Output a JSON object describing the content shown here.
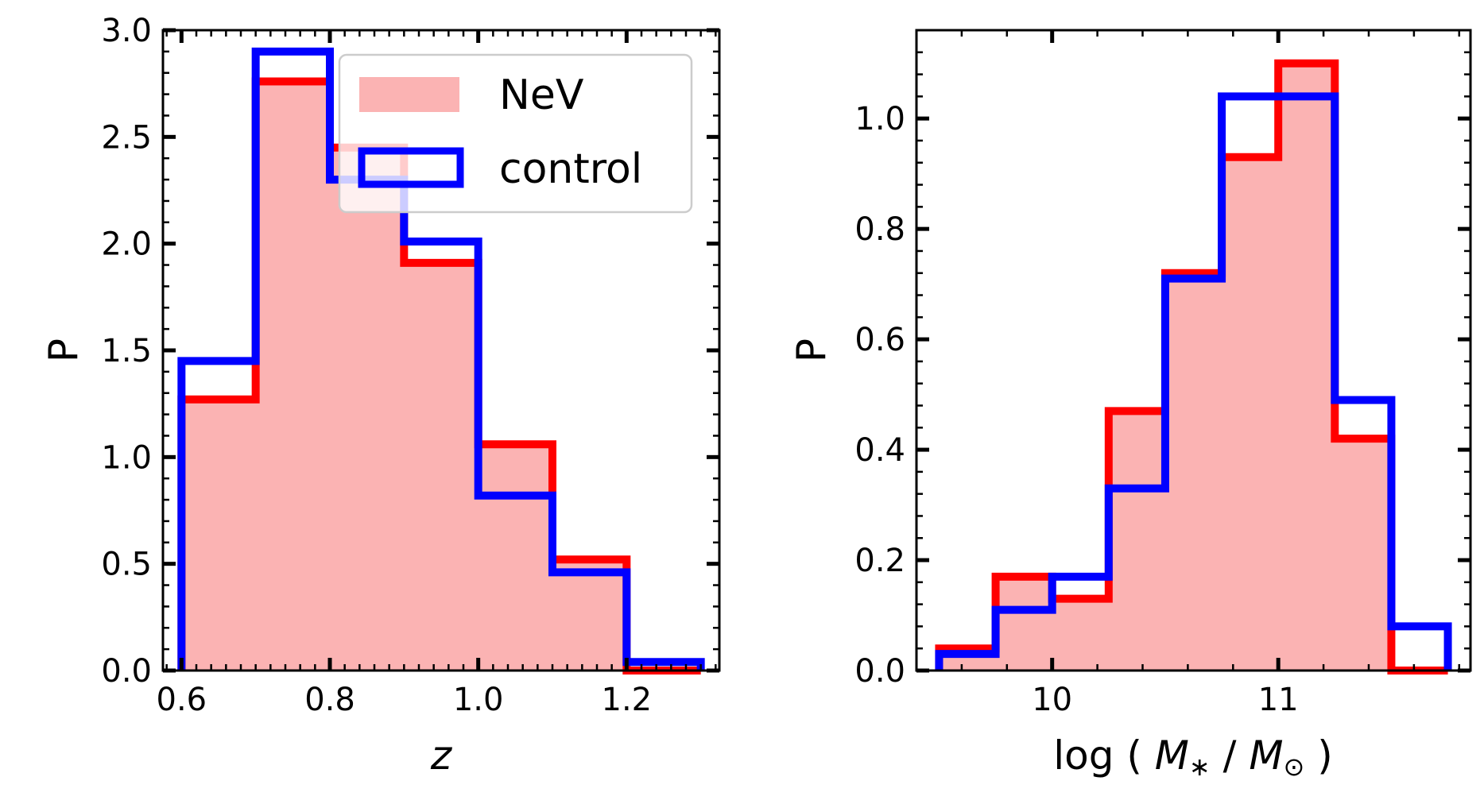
{
  "chart_data": [
    {
      "type": "histogram",
      "xlabel": "z",
      "ylabel": "P",
      "xlim": [
        0.575,
        1.325
      ],
      "ylim": [
        0.0,
        3.0
      ],
      "xticks": [
        0.6,
        0.8,
        1.0,
        1.2
      ],
      "xtick_labels": [
        "0.6",
        "0.8",
        "1.0",
        "1.2"
      ],
      "yticks": [
        0.0,
        0.5,
        1.0,
        1.5,
        2.0,
        2.5,
        3.0
      ],
      "ytick_labels": [
        "0.0",
        "0.5",
        "1.0",
        "1.5",
        "2.0",
        "2.5",
        "3.0"
      ],
      "bin_edges": [
        0.6,
        0.7,
        0.8,
        0.9,
        1.0,
        1.1,
        1.2,
        1.3
      ],
      "series": [
        {
          "name": "NeV",
          "style": "filled",
          "values": [
            1.27,
            2.76,
            2.45,
            1.91,
            1.06,
            0.52,
            0.0
          ],
          "fill": "#fbb3b3",
          "stroke": "#ff0000"
        },
        {
          "name": "control",
          "style": "step",
          "values": [
            1.45,
            2.9,
            2.3,
            2.01,
            0.82,
            0.46,
            0.04
          ],
          "stroke": "#0000ff"
        }
      ],
      "legend": {
        "position": "top-right",
        "entries": [
          "NeV",
          "control"
        ]
      }
    },
    {
      "type": "histogram",
      "xlabel": "log ( M* / M⊙ )",
      "ylabel": "P",
      "xlim": [
        9.4,
        11.85
      ],
      "ylim": [
        0.0,
        1.16
      ],
      "xticks": [
        10,
        11
      ],
      "xtick_labels": [
        "10",
        "11"
      ],
      "yticks": [
        0.0,
        0.2,
        0.4,
        0.6,
        0.8,
        1.0
      ],
      "ytick_labels": [
        "0.0",
        "0.2",
        "0.4",
        "0.6",
        "0.8",
        "1.0"
      ],
      "bin_edges": [
        9.5,
        9.75,
        10.0,
        10.25,
        10.5,
        10.75,
        11.0,
        11.25,
        11.5,
        11.75
      ],
      "series": [
        {
          "name": "NeV",
          "style": "filled",
          "values": [
            0.04,
            0.17,
            0.13,
            0.47,
            0.72,
            0.93,
            1.1,
            0.42,
            0.0
          ],
          "fill": "#fbb3b3",
          "stroke": "#ff0000"
        },
        {
          "name": "control",
          "style": "step",
          "values": [
            0.03,
            0.11,
            0.17,
            0.33,
            0.71,
            1.04,
            1.04,
            0.49,
            0.08
          ],
          "stroke": "#0000ff"
        }
      ]
    }
  ]
}
